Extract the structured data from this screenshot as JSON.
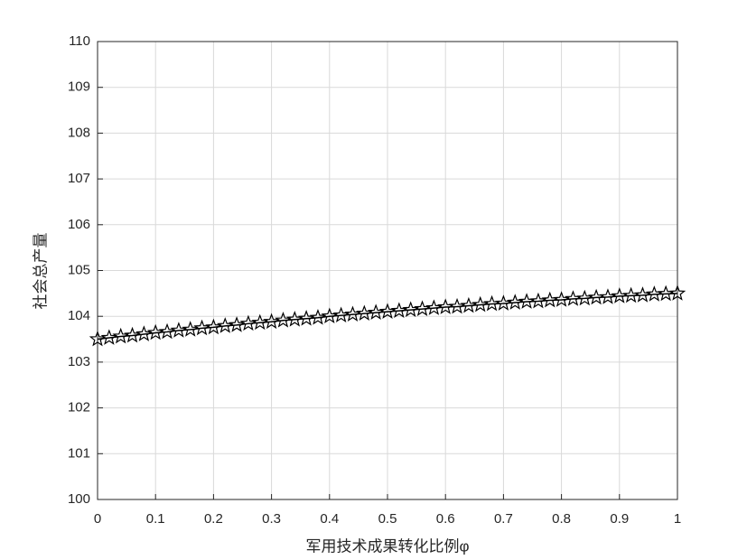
{
  "chart_data": {
    "type": "line",
    "x_label": "军用技术成果转化比例φ",
    "y_label": "社会总产量",
    "x": [
      0,
      0.02,
      0.04,
      0.06,
      0.08,
      0.1,
      0.12,
      0.14,
      0.16,
      0.18,
      0.2,
      0.22,
      0.24,
      0.26,
      0.28,
      0.3,
      0.32,
      0.34,
      0.36,
      0.38,
      0.4,
      0.42,
      0.44,
      0.46,
      0.48,
      0.5,
      0.52,
      0.54,
      0.56,
      0.58,
      0.6,
      0.62,
      0.64,
      0.66,
      0.68,
      0.7,
      0.72,
      0.74,
      0.76,
      0.78,
      0.8,
      0.82,
      0.84,
      0.86,
      0.88,
      0.9,
      0.92,
      0.94,
      0.96,
      0.98,
      1
    ],
    "series": [
      {
        "color": "#000000",
        "marker": "star",
        "values": [
          103.5,
          103.53,
          103.56,
          103.58,
          103.61,
          103.64,
          103.66,
          103.69,
          103.71,
          103.74,
          103.76,
          103.79,
          103.81,
          103.84,
          103.86,
          103.88,
          103.91,
          103.93,
          103.95,
          103.97,
          104.0,
          104.02,
          104.04,
          104.06,
          104.08,
          104.1,
          104.12,
          104.14,
          104.16,
          104.18,
          104.2,
          104.21,
          104.23,
          104.25,
          104.27,
          104.28,
          104.3,
          104.32,
          104.33,
          104.35,
          104.36,
          104.38,
          104.39,
          104.41,
          104.42,
          104.44,
          104.45,
          104.46,
          104.48,
          104.49,
          104.5
        ]
      }
    ],
    "xlim": [
      0,
      1
    ],
    "xticks": [
      0,
      0.1,
      0.2,
      0.3,
      0.4,
      0.5,
      0.6,
      0.7,
      0.8,
      0.9,
      1
    ],
    "ylim": [
      100,
      110
    ],
    "yticks": [
      100,
      101,
      102,
      103,
      104,
      105,
      106,
      107,
      108,
      109,
      110
    ],
    "grid": true
  }
}
